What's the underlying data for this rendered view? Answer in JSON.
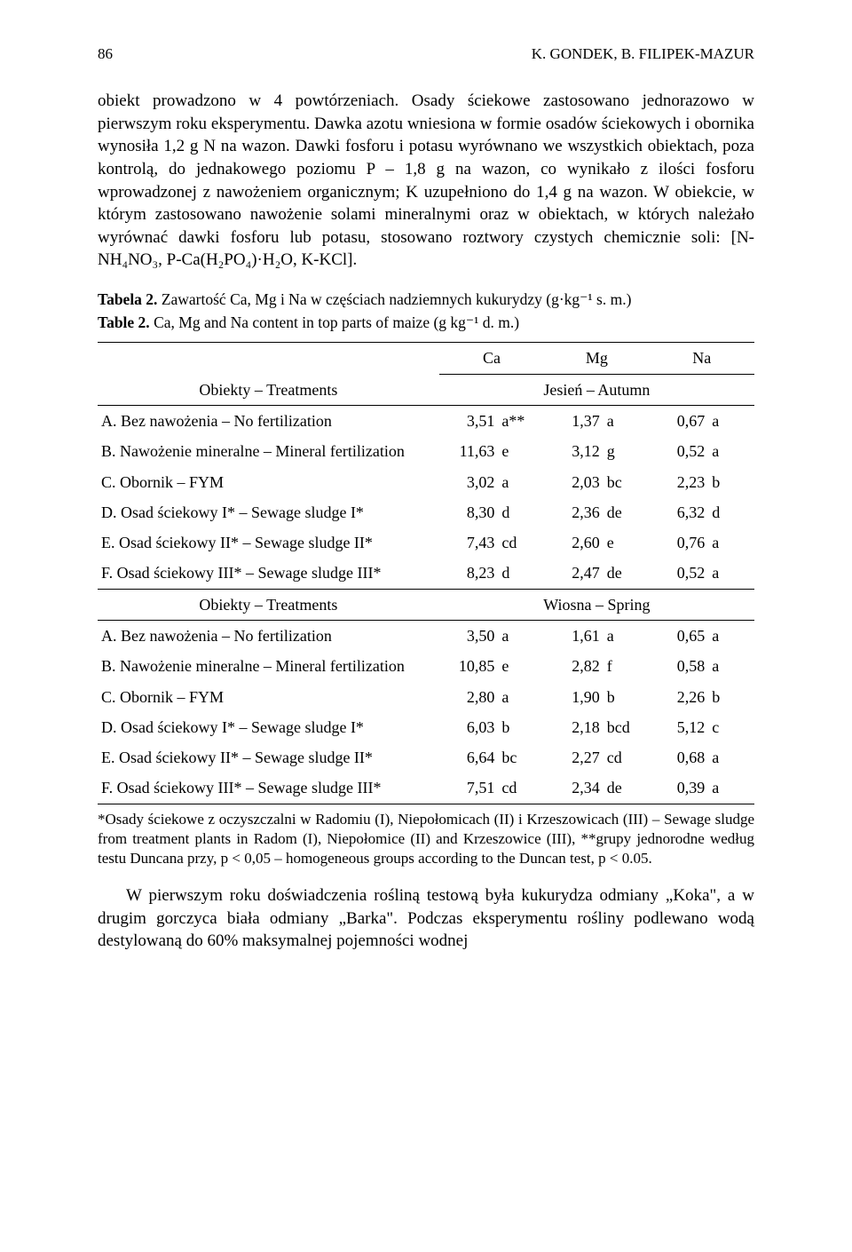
{
  "page_number": "86",
  "running_head": "K. GONDEK, B. FILIPEK-MAZUR",
  "paragraphs": {
    "p1": "obiekt prowadzono w 4 powtórzeniach. Osady ściekowe zastosowano jednorazowo w pierwszym roku eksperymentu. Dawka azotu wniesiona w formie osadów ściekowych i obornika wynosiła 1,2 g N na wazon. Dawki fosforu i potasu wyrównano we wszystkich obiektach, poza kontrolą, do jednakowego poziomu P – 1,8 g na wazon, co wynikało z ilości fosforu wprowadzonej z nawożeniem organicznym; K uzupełniono do 1,4 g na wazon. W obiekcie, w którym zastosowano nawożenie solami mineralnymi oraz w obiektach, w których należało wyrównać dawki fosforu lub potasu, stosowano roztwory czystych chemicznie soli: [N-NH₄NO₃, P-Ca(H₂PO₄)·H₂O, K-KCl].",
    "p2": "W pierwszym roku doświadczenia rośliną testową była kukurydza odmiany „Koka\", a w drugim gorczyca biała odmiany „Barka\". Podczas eksperymentu rośliny podlewano wodą destylowaną do 60% maksymalnej pojemności wodnej"
  },
  "table2": {
    "caption_pl_prefix": "Tabela 2.",
    "caption_pl_rest": " Zawartość Ca, Mg i Na w częściach nadziemnych kukurydzy (g·kg⁻¹ s. m.)",
    "caption_en_prefix": "Table 2.",
    "caption_en_rest": " Ca, Mg and Na content in top parts of maize (g kg⁻¹ d. m.)",
    "columns": {
      "treatments_label": "Obiekty – Treatments",
      "ca": "Ca",
      "mg": "Mg",
      "na": "Na"
    },
    "season_headers": {
      "autumn": "Jesień – Autumn",
      "spring": "Wiosna – Spring"
    },
    "rows_autumn": [
      {
        "label": "A. Bez nawożenia – No fertilization",
        "ca": "3,51",
        "cag": "a**",
        "mg": "1,37",
        "mgg": "a",
        "na": "0,67",
        "nag": "a"
      },
      {
        "label": "B. Nawożenie mineralne – Mineral fertilization",
        "ca": "11,63",
        "cag": "e",
        "mg": "3,12",
        "mgg": "g",
        "na": "0,52",
        "nag": "a"
      },
      {
        "label": "C. Obornik – FYM",
        "ca": "3,02",
        "cag": "a",
        "mg": "2,03",
        "mgg": "bc",
        "na": "2,23",
        "nag": "b"
      },
      {
        "label": "D. Osad ściekowy I* – Sewage sludge I*",
        "ca": "8,30",
        "cag": "d",
        "mg": "2,36",
        "mgg": "de",
        "na": "6,32",
        "nag": "d"
      },
      {
        "label": "E. Osad ściekowy II* – Sewage sludge II*",
        "ca": "7,43",
        "cag": "cd",
        "mg": "2,60",
        "mgg": "e",
        "na": "0,76",
        "nag": "a"
      },
      {
        "label": "F. Osad ściekowy III* – Sewage sludge III*",
        "ca": "8,23",
        "cag": "d",
        "mg": "2,47",
        "mgg": "de",
        "na": "0,52",
        "nag": "a"
      }
    ],
    "rows_spring": [
      {
        "label": "A. Bez nawożenia – No fertilization",
        "ca": "3,50",
        "cag": "a",
        "mg": "1,61",
        "mgg": "a",
        "na": "0,65",
        "nag": "a"
      },
      {
        "label": "B. Nawożenie mineralne – Mineral fertilization",
        "ca": "10,85",
        "cag": "e",
        "mg": "2,82",
        "mgg": "f",
        "na": "0,58",
        "nag": "a"
      },
      {
        "label": "C. Obornik – FYM",
        "ca": "2,80",
        "cag": "a",
        "mg": "1,90",
        "mgg": "b",
        "na": "2,26",
        "nag": "b"
      },
      {
        "label": "D. Osad ściekowy I* – Sewage sludge I*",
        "ca": "6,03",
        "cag": "b",
        "mg": "2,18",
        "mgg": "bcd",
        "na": "5,12",
        "nag": "c"
      },
      {
        "label": "E. Osad ściekowy II* – Sewage sludge II*",
        "ca": "6,64",
        "cag": "bc",
        "mg": "2,27",
        "mgg": "cd",
        "na": "0,68",
        "nag": "a"
      },
      {
        "label": "F. Osad ściekowy III* – Sewage sludge III*",
        "ca": "7,51",
        "cag": "cd",
        "mg": "2,34",
        "mgg": "de",
        "na": "0,39",
        "nag": "a"
      }
    ],
    "footnote": "*Osady ściekowe z oczyszczalni w Radomiu (I), Niepołomicach (II) i Krzeszowicach (III) – Sewage sludge from treatment plants in Radom (I), Niepołomice (II) and Krzeszowice (III), **grupy jednorodne według testu Duncana przy, p < 0,05 – homogeneous groups according to the Duncan test, p < 0.05."
  }
}
